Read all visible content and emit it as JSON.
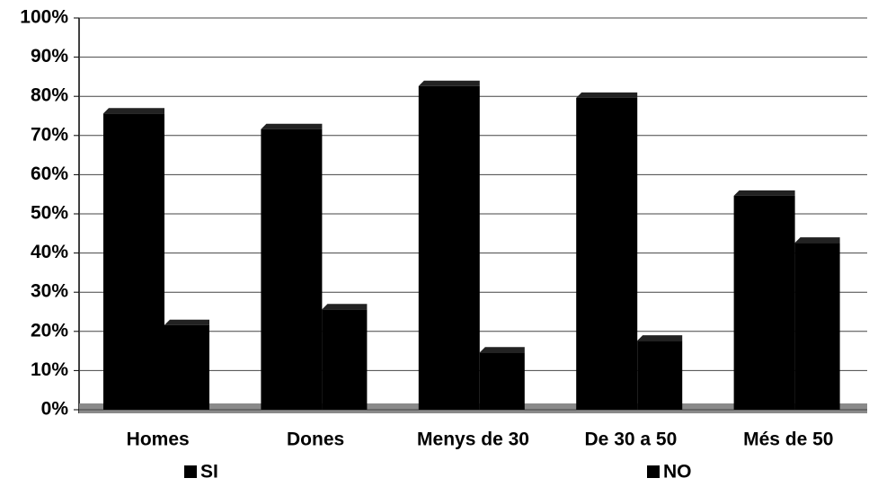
{
  "chart_data": {
    "type": "bar",
    "categories": [
      "Homes",
      "Dones",
      "Menys de 30",
      "De 30 a 50",
      "Més de 50"
    ],
    "series": [
      {
        "name": "SI",
        "color": "#000000",
        "values": [
          77,
          73,
          84,
          81,
          56
        ]
      },
      {
        "name": "NO",
        "color": "#000000",
        "values": [
          23,
          27,
          16,
          19,
          44
        ]
      }
    ],
    "ylim": [
      0,
      100
    ],
    "yticks": [
      {
        "value": 0,
        "label": "0%"
      },
      {
        "value": 10,
        "label": "10%"
      },
      {
        "value": 20,
        "label": "20%"
      },
      {
        "value": 30,
        "label": "30%"
      },
      {
        "value": 40,
        "label": "40%"
      },
      {
        "value": 50,
        "label": "50%"
      },
      {
        "value": 60,
        "label": "60%"
      },
      {
        "value": 70,
        "label": "70%"
      },
      {
        "value": 80,
        "label": "80%"
      },
      {
        "value": 90,
        "label": "90%"
      },
      {
        "value": 100,
        "label": "100%"
      }
    ],
    "grid": true,
    "legend": "bottom"
  }
}
